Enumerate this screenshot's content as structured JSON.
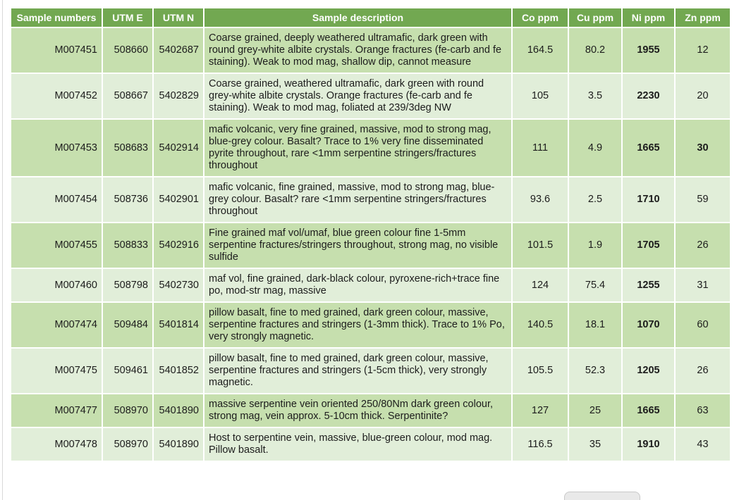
{
  "table": {
    "colors": {
      "header_bg": "#72a851",
      "header_text": "#ffffff",
      "row_dark": "#c6dfae",
      "row_light": "#e1eed9",
      "body_text": "#1c1c1c",
      "grid": "#ffffff"
    },
    "columns": [
      "Sample numbers",
      "UTM E",
      "UTM N",
      "Sample description",
      "Co ppm",
      "Cu ppm",
      "Ni ppm",
      "Zn ppm"
    ],
    "rows": [
      {
        "sample": "M007451",
        "utm_e": "508660",
        "utm_n": "5402687",
        "description": "Coarse grained, deeply weathered ultramafic, dark green with round grey-white albite crystals. Orange fractures (fe-carb and fe staining). Weak to mod mag, shallow dip, cannot measure",
        "co": "164.5",
        "cu": "80.2",
        "ni": "1955",
        "zn": "12",
        "zn_bold": false
      },
      {
        "sample": "M007452",
        "utm_e": "508667",
        "utm_n": "5402829",
        "description": "Coarse grained, weathered ultramafic, dark green with round grey-white albite crystals. Orange fractures (fe-carb and fe staining). Weak to mod mag, foliated at 239/3deg NW",
        "co": "105",
        "cu": "3.5",
        "ni": "2230",
        "zn": "20",
        "zn_bold": false
      },
      {
        "sample": "M007453",
        "utm_e": "508683",
        "utm_n": "5402914",
        "description": "mafic volcanic, very fine grained, massive, mod to strong mag, blue-grey colour. Basalt? Trace to 1% very fine disseminated pyrite throughout, rare <1mm serpentine stringers/fractures throughout",
        "co": "111",
        "cu": "4.9",
        "ni": "1665",
        "zn": "30",
        "zn_bold": true
      },
      {
        "sample": "M007454",
        "utm_e": "508736",
        "utm_n": "5402901",
        "description": "mafic volcanic, fine grained, massive, mod to strong mag, blue-grey colour. Basalt? rare <1mm serpentine stringers/fractures throughout",
        "co": "93.6",
        "cu": "2.5",
        "ni": "1710",
        "zn": "59",
        "zn_bold": false
      },
      {
        "sample": "M007455",
        "utm_e": "508833",
        "utm_n": "5402916",
        "description": "Fine grained maf vol/umaf, blue green colour fine 1-5mm serpentine fractures/stringers throughout, strong mag, no visible sulfide",
        "co": "101.5",
        "cu": "1.9",
        "ni": "1705",
        "zn": "26",
        "zn_bold": false
      },
      {
        "sample": "M007460",
        "utm_e": "508798",
        "utm_n": "5402730",
        "description": "maf vol, fine grained, dark-black colour, pyroxene-rich+trace fine po, mod-str mag, massive",
        "co": "124",
        "cu": "75.4",
        "ni": "1255",
        "zn": "31",
        "zn_bold": false
      },
      {
        "sample": "M007474",
        "utm_e": "509484",
        "utm_n": "5401814",
        "description": "pillow basalt, fine to med grained, dark green colour, massive, serpentine fractures and stringers (1-3mm thick). Trace to 1% Po, very strongly magnetic.",
        "co": "140.5",
        "cu": "18.1",
        "ni": "1070",
        "zn": "60",
        "zn_bold": false
      },
      {
        "sample": "M007475",
        "utm_e": "509461",
        "utm_n": "5401852",
        "description": "pillow basalt, fine to med grained, dark green colour, massive, serpentine fractures and stringers (1-5cm thick), very strongly magnetic.",
        "co": "105.5",
        "cu": "52.3",
        "ni": "1205",
        "zn": "26",
        "zn_bold": false
      },
      {
        "sample": "M007477",
        "utm_e": "508970",
        "utm_n": "5401890",
        "description": "massive serpentine vein oriented 250/80Nm dark green colour, strong mag, vein approx. 5-10cm thick. Serpentinite?",
        "co": "127",
        "cu": "25",
        "ni": "1665",
        "zn": "63",
        "zn_bold": false
      },
      {
        "sample": "M007478",
        "utm_e": "508970",
        "utm_n": "5401890",
        "description": "Host to serpentine vein, massive, blue-green colour, mod mag. Pillow basalt.",
        "co": "116.5",
        "cu": "35",
        "ni": "1910",
        "zn": "43",
        "zn_bold": false
      }
    ]
  }
}
